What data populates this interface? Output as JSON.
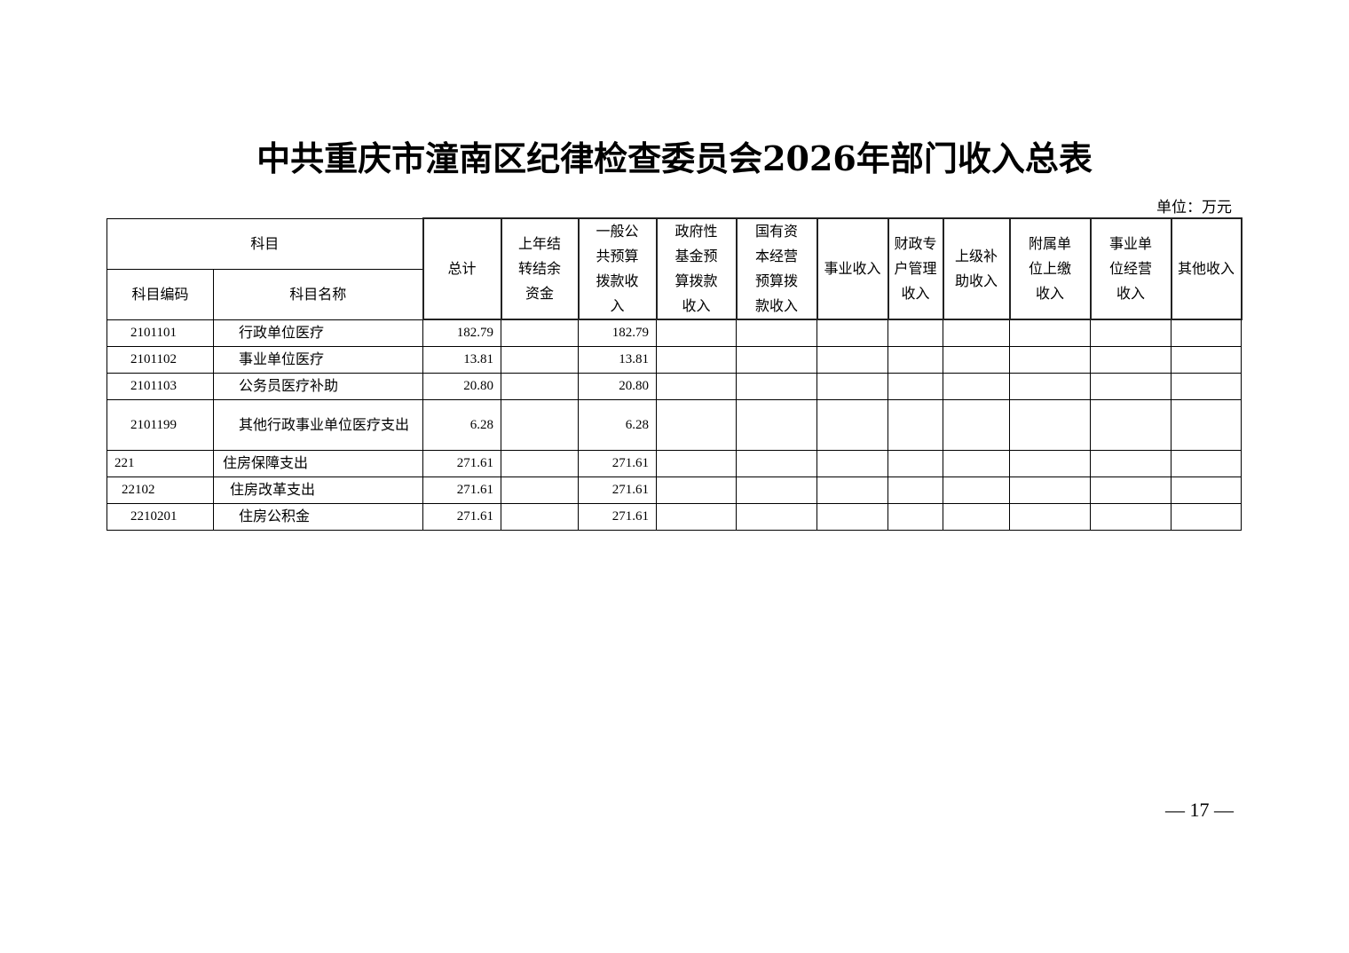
{
  "title": "中共重庆市潼南区纪律检查委员会2026年部门收入总表",
  "unit": "单位：万元",
  "headers": {
    "subject": "科目",
    "code": "科目编码",
    "name": "科目名称",
    "cols": [
      "总计",
      "上年结转结余资金",
      "一般公共预算拨款收入",
      "政府性基金预算拨款收入",
      "国有资本经营预算拨款收入",
      "事业收入",
      "财政专户管理收入",
      "上级补助收入",
      "附属单位上缴收入",
      "事业单位经营收入",
      "其他收入"
    ]
  },
  "rows": [
    {
      "code": "2101101",
      "name": "行政单位医疗",
      "total": "182.79",
      "general": "182.79"
    },
    {
      "code": "2101102",
      "name": "事业单位医疗",
      "total": "13.81",
      "general": "13.81"
    },
    {
      "code": "2101103",
      "name": "公务员医疗补助",
      "total": "20.80",
      "general": "20.80"
    },
    {
      "code": "2101199",
      "name": "其他行政事业单位医疗支出",
      "total": "6.28",
      "general": "6.28"
    },
    {
      "code": "221",
      "name": "住房保障支出",
      "total": "271.61",
      "general": "271.61"
    },
    {
      "code": "22102",
      "name": "住房改革支出",
      "total": "271.61",
      "general": "271.61"
    },
    {
      "code": "2210201",
      "name": "住房公积金",
      "total": "271.61",
      "general": "271.61"
    }
  ],
  "page_number": "— 17 —"
}
